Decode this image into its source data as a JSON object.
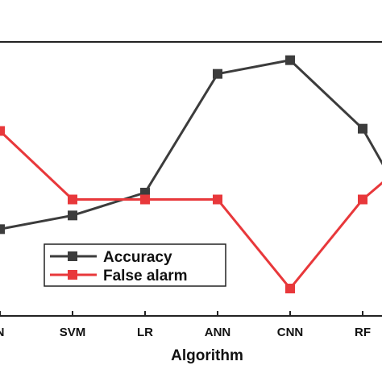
{
  "chart_data": {
    "type": "line",
    "xlabel": "Algorithm",
    "ylabel": "",
    "categories": [
      "N",
      "SVM",
      "LR",
      "ANN",
      "CNN",
      "RF",
      ""
    ],
    "series": [
      {
        "name": "Accuracy",
        "color": "#3c3c3c",
        "marker": "square",
        "values": [
          79.5,
          81,
          83.5,
          96.5,
          98,
          90.5,
          76.5
        ]
      },
      {
        "name": "False alarm",
        "color": "#e8383b",
        "marker": "square",
        "values": [
          1.7,
          0.7,
          0.7,
          0.7,
          -0.6,
          0.7,
          1.6
        ]
      }
    ],
    "legend": {
      "position": "lower-left"
    },
    "grid": false
  }
}
